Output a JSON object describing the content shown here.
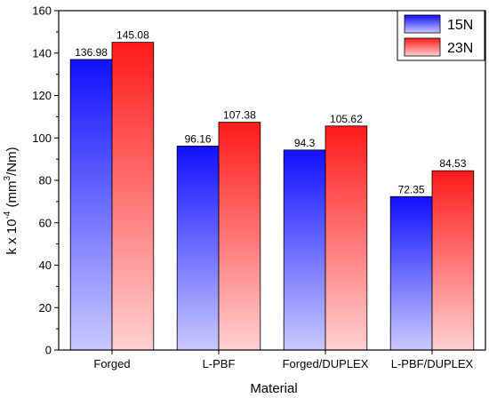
{
  "chart_data": {
    "type": "bar",
    "categories": [
      "Forged",
      "L-PBF",
      "Forged/DUPLEX",
      "L-PBF/DUPLEX"
    ],
    "series": [
      {
        "name": "15N",
        "values": [
          136.98,
          96.16,
          94.3,
          72.35
        ],
        "color_top": "#1010ff",
        "color_bottom": "#c9c9ff"
      },
      {
        "name": "23N",
        "values": [
          145.08,
          107.38,
          105.62,
          84.53
        ],
        "color_top": "#ff1a1a",
        "color_bottom": "#ffd0d0"
      }
    ],
    "data_labels": [
      [
        "136.98",
        "96.16",
        "94.3",
        "72.35"
      ],
      [
        "145.08",
        "107.38",
        "105.62",
        "84.53"
      ]
    ],
    "xlabel": "Material",
    "ylabel": {
      "base": "k x 10",
      "exponent": "-4",
      "unit_pre": " (mm",
      "unit_exp": "3",
      "unit_post": "/Nm)"
    },
    "ylim": [
      0,
      160
    ],
    "yticks": [
      0,
      20,
      40,
      60,
      80,
      100,
      120,
      140,
      160
    ],
    "grid": false,
    "legend_position": "top-right"
  }
}
